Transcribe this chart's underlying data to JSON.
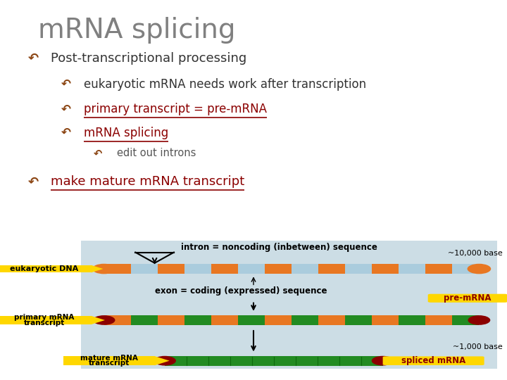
{
  "title": "mRNA splicing",
  "title_color": "#808080",
  "bg_top": "#ffffff",
  "diagram_bg": "#7a9aaa",
  "diagram_panel_bg": "#ccdde5",
  "orange": "#E87722",
  "light_blue": "#aaccdd",
  "green": "#228B22",
  "dark_red": "#8B0000",
  "yellow": "#FFD700",
  "bullet_brown": "#8B4513",
  "bullets": [
    {
      "text": "Post-transcriptional processing",
      "level": 0,
      "underline": false,
      "color": "#333333",
      "fs": 13
    },
    {
      "text": "eukaryotic mRNA needs work after transcription",
      "level": 1,
      "underline": false,
      "color": "#333333",
      "fs": 12
    },
    {
      "text": "primary transcript = pre-mRNA",
      "level": 1,
      "underline": true,
      "color": "#8B0000",
      "fs": 12
    },
    {
      "text": "mRNA splicing",
      "level": 1,
      "underline": true,
      "color": "#8B0000",
      "fs": 12
    },
    {
      "text": "edit out introns",
      "level": 2,
      "underline": false,
      "color": "#555555",
      "fs": 10.5
    },
    {
      "text": "make mature mRNA transcript",
      "level": 0,
      "underline": true,
      "color": "#8B0000",
      "fs": 13
    }
  ],
  "y_positions": [
    7.55,
    6.45,
    5.4,
    4.4,
    3.55,
    2.35
  ]
}
